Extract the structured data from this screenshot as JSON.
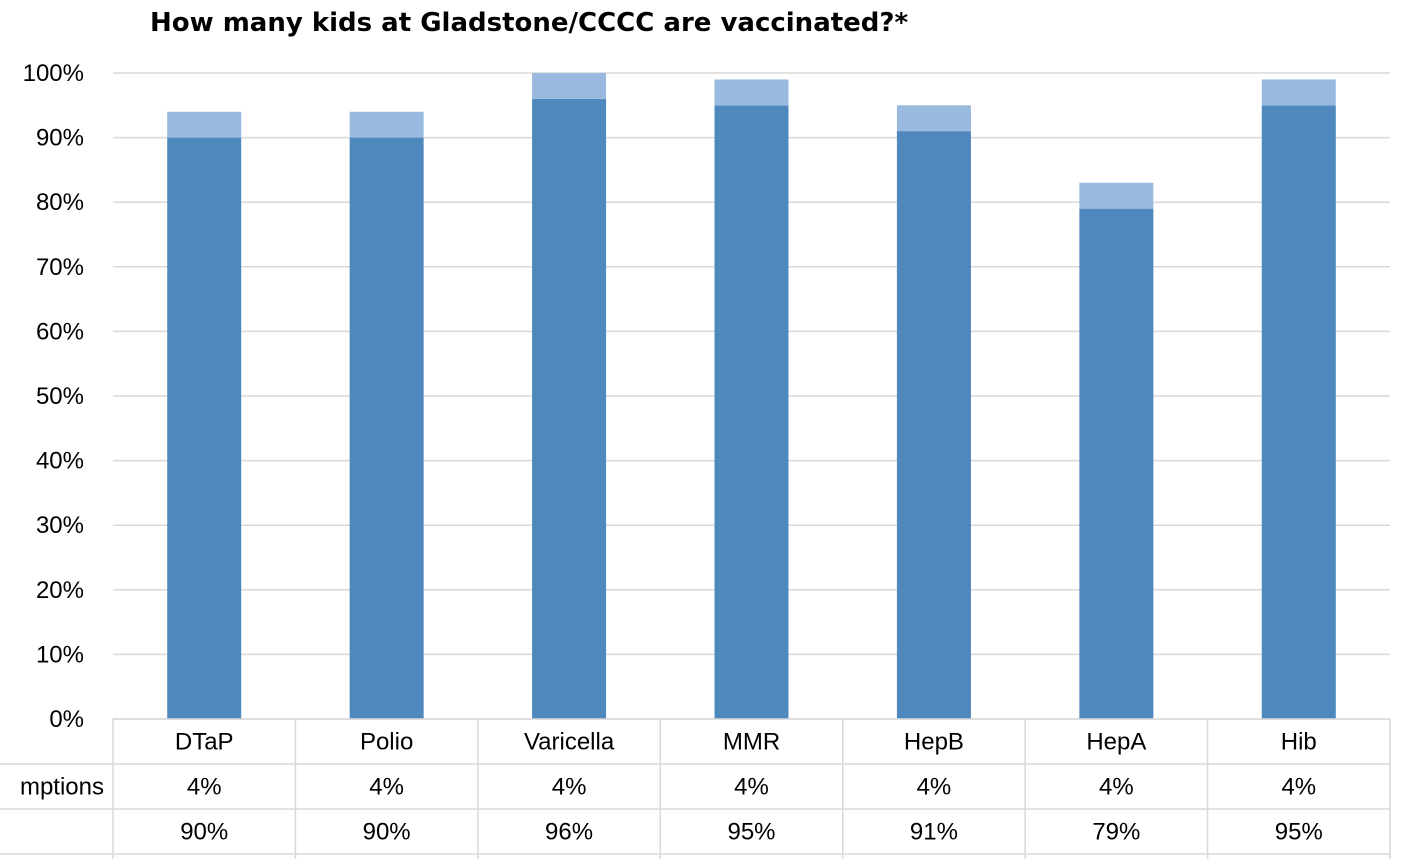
{
  "chart_data": {
    "type": "bar",
    "stacked": true,
    "title": "How many kids at Gladstone/CCCC are vaccinated?*",
    "categories": [
      "DTaP",
      "Polio",
      "Varicella",
      "MMR",
      "HepB",
      "HepA",
      "Hib"
    ],
    "series": [
      {
        "values": [
          90,
          90,
          96,
          95,
          91,
          79,
          95
        ],
        "color": "#4f88bc"
      },
      {
        "values": [
          4,
          4,
          4,
          4,
          4,
          4,
          4
        ],
        "color": "#9ab9df"
      }
    ],
    "yticks": [
      "0%",
      "10%",
      "20%",
      "30%",
      "40%",
      "50%",
      "60%",
      "70%",
      "80%",
      "90%",
      "100%"
    ],
    "ylim": [
      0,
      100
    ],
    "grid": true,
    "table": {
      "rows": [
        {
          "label": "mptions",
          "cells": [
            "4%",
            "4%",
            "4%",
            "4%",
            "4%",
            "4%",
            "4%"
          ]
        },
        {
          "label": "",
          "cells": [
            "90%",
            "90%",
            "96%",
            "95%",
            "91%",
            "79%",
            "95%"
          ]
        }
      ]
    }
  }
}
